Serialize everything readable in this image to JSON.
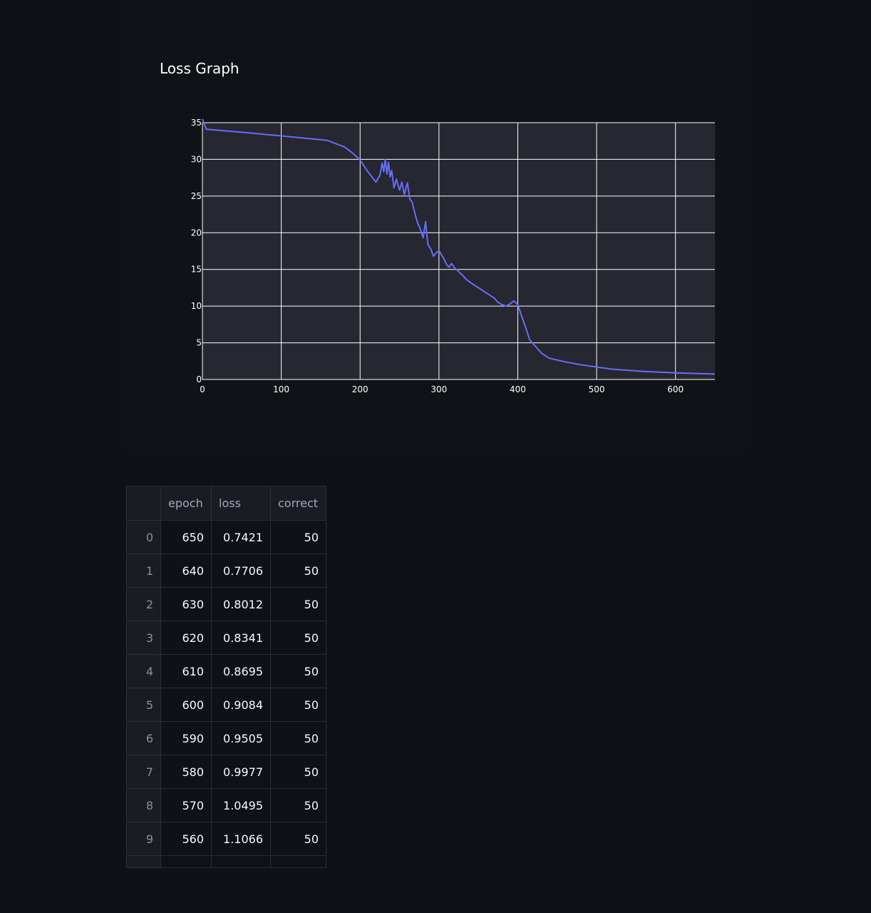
{
  "chart_data": {
    "type": "line",
    "title": "Loss Graph",
    "xlabel": "",
    "ylabel": "",
    "xlim": [
      0,
      650
    ],
    "ylim": [
      0,
      35
    ],
    "x_ticks": [
      "0",
      "100",
      "200",
      "300",
      "400",
      "500",
      "600"
    ],
    "y_ticks": [
      "0",
      "5",
      "10",
      "15",
      "20",
      "25",
      "30",
      "35"
    ],
    "grid": true,
    "legend": "none",
    "line_color": "#636efa",
    "x": [
      0,
      5,
      50,
      100,
      158,
      180,
      190,
      200,
      210,
      220,
      225,
      228,
      230,
      232,
      234,
      236,
      238,
      240,
      243,
      246,
      250,
      253,
      256,
      260,
      263,
      266,
      270,
      273,
      276,
      280,
      283,
      286,
      290,
      293,
      296,
      300,
      303,
      306,
      310,
      313,
      316,
      320,
      325,
      330,
      335,
      340,
      350,
      360,
      370,
      375,
      380,
      385,
      390,
      395,
      400,
      405,
      410,
      415,
      420,
      430,
      440,
      460,
      480,
      500,
      520,
      560,
      600,
      650
    ],
    "y": [
      35.5,
      34.1,
      33.7,
      33.2,
      32.6,
      31.7,
      30.9,
      29.9,
      28.3,
      26.9,
      27.8,
      29.5,
      28.3,
      30.0,
      28.0,
      29.6,
      27.6,
      28.5,
      26.1,
      27.3,
      25.8,
      26.9,
      25.2,
      26.8,
      24.6,
      24.2,
      22.4,
      21.3,
      20.6,
      19.3,
      21.5,
      18.4,
      17.7,
      16.8,
      17.2,
      17.6,
      17.0,
      16.5,
      15.6,
      15.3,
      15.8,
      15.2,
      14.7,
      14.2,
      13.6,
      13.2,
      12.5,
      11.8,
      11.1,
      10.5,
      10.2,
      10.0,
      10.3,
      10.7,
      10.2,
      8.6,
      7.1,
      5.4,
      4.8,
      3.6,
      2.9,
      2.4,
      2.0,
      1.7,
      1.4,
      1.1,
      0.9,
      0.74
    ]
  },
  "table": {
    "headers": [
      "",
      "epoch",
      "loss",
      "correct"
    ],
    "rows": [
      [
        "0",
        "650",
        "0.7421",
        "50"
      ],
      [
        "1",
        "640",
        "0.7706",
        "50"
      ],
      [
        "2",
        "630",
        "0.8012",
        "50"
      ],
      [
        "3",
        "620",
        "0.8341",
        "50"
      ],
      [
        "4",
        "610",
        "0.8695",
        "50"
      ],
      [
        "5",
        "600",
        "0.9084",
        "50"
      ],
      [
        "6",
        "590",
        "0.9505",
        "50"
      ],
      [
        "7",
        "580",
        "0.9977",
        "50"
      ],
      [
        "8",
        "570",
        "1.0495",
        "50"
      ],
      [
        "9",
        "560",
        "1.1066",
        "50"
      ]
    ]
  },
  "colors": {
    "plot_bg": "#262730",
    "page_bg": "#0e1118",
    "grid": "#ffffff"
  }
}
